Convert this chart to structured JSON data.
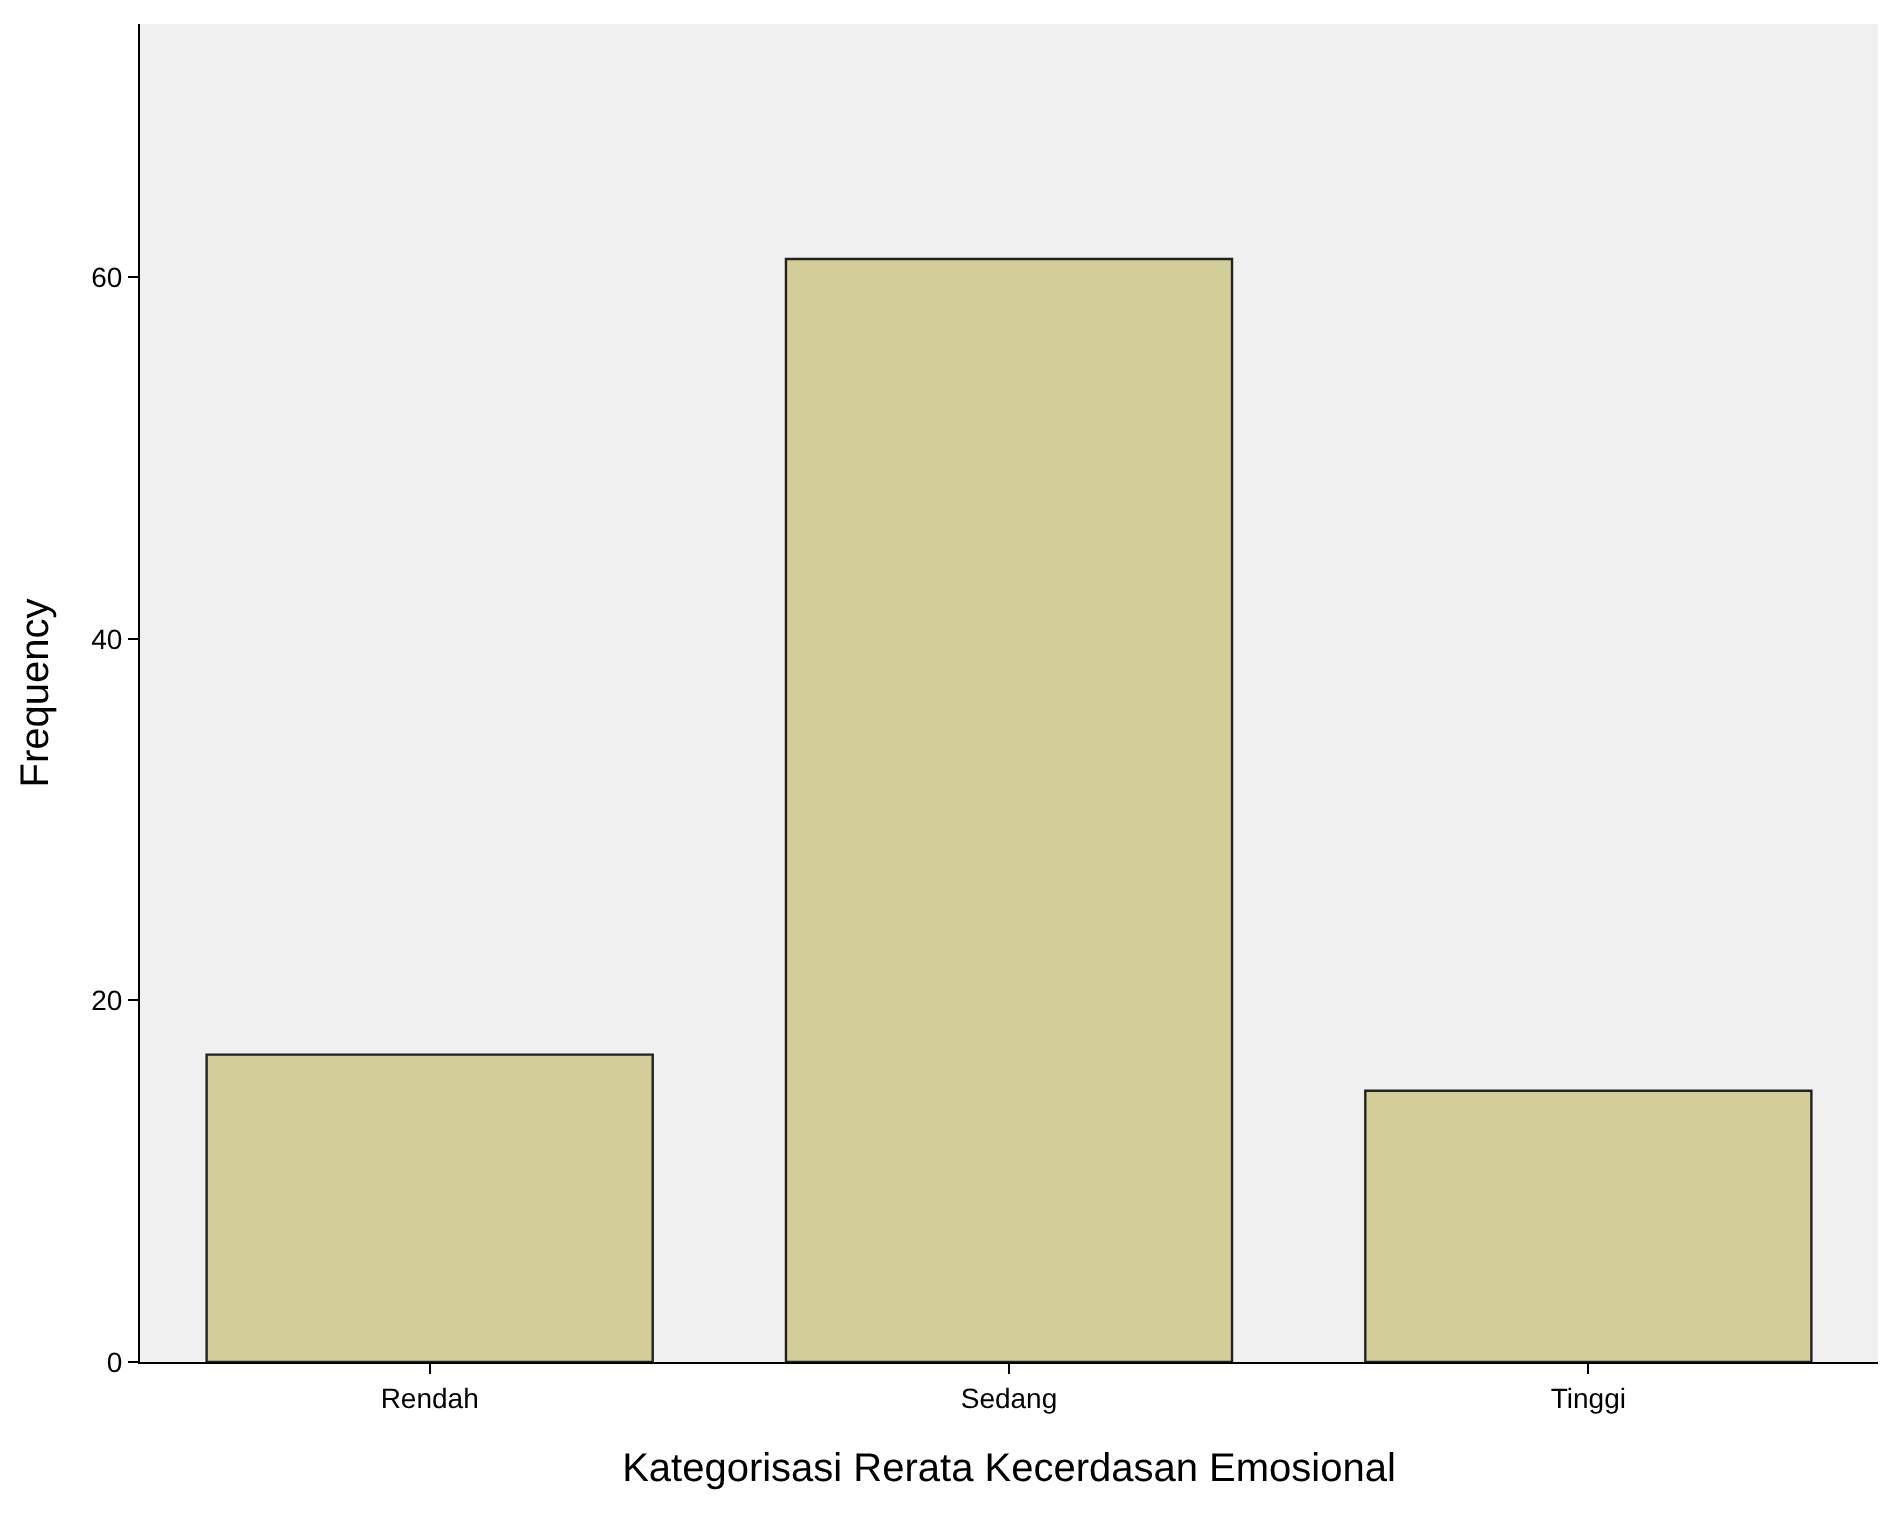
{
  "chart_data": {
    "type": "bar",
    "xlabel": "Kategorisasi Rerata Kecerdasan Emosional",
    "ylabel": "Frequency",
    "categories": [
      "Rendah",
      "Sedang",
      "Tinggi"
    ],
    "values": [
      17,
      61,
      15
    ],
    "color": "#d3ce97",
    "ylim": [
      0,
      74
    ],
    "yticks": [
      0,
      20,
      40,
      60
    ],
    "grid": false
  }
}
